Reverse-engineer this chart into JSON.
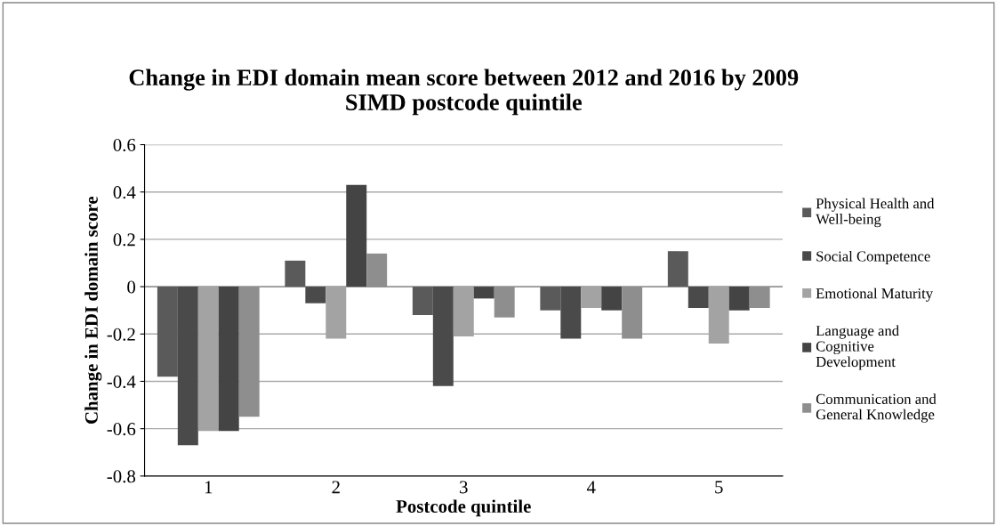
{
  "chart_data": {
    "type": "bar",
    "title": "Change in EDI domain mean score between 2012 and 2016 by 2009\nSIMD postcode quintile",
    "xlabel": "Postcode quintile",
    "ylabel": "Change in EDI domain score",
    "categories": [
      "1",
      "2",
      "3",
      "4",
      "5"
    ],
    "series": [
      {
        "name": "Physical Health and\nWell-being",
        "color": "#5a5a5a",
        "values": [
          -0.38,
          0.11,
          -0.12,
          -0.1,
          0.15
        ]
      },
      {
        "name": "Social Competence",
        "color": "#4a4a4a",
        "values": [
          -0.67,
          -0.07,
          -0.42,
          -0.22,
          -0.09
        ]
      },
      {
        "name": "Emotional Maturity",
        "color": "#a3a3a3",
        "values": [
          -0.61,
          -0.22,
          -0.21,
          -0.09,
          -0.24
        ]
      },
      {
        "name": "Language and\nCognitive\nDevelopment",
        "color": "#444444",
        "values": [
          -0.61,
          0.43,
          -0.05,
          -0.1,
          -0.1
        ]
      },
      {
        "name": "Communication and\nGeneral Knowledge",
        "color": "#8e8e8e",
        "values": [
          -0.55,
          0.14,
          -0.13,
          -0.22,
          -0.09
        ]
      }
    ],
    "ylim": [
      -0.8,
      0.6
    ],
    "yticks": [
      -0.8,
      -0.6,
      -0.4,
      -0.2,
      0,
      0.2,
      0.4,
      0.6
    ],
    "grid": "y",
    "legend": "right"
  }
}
